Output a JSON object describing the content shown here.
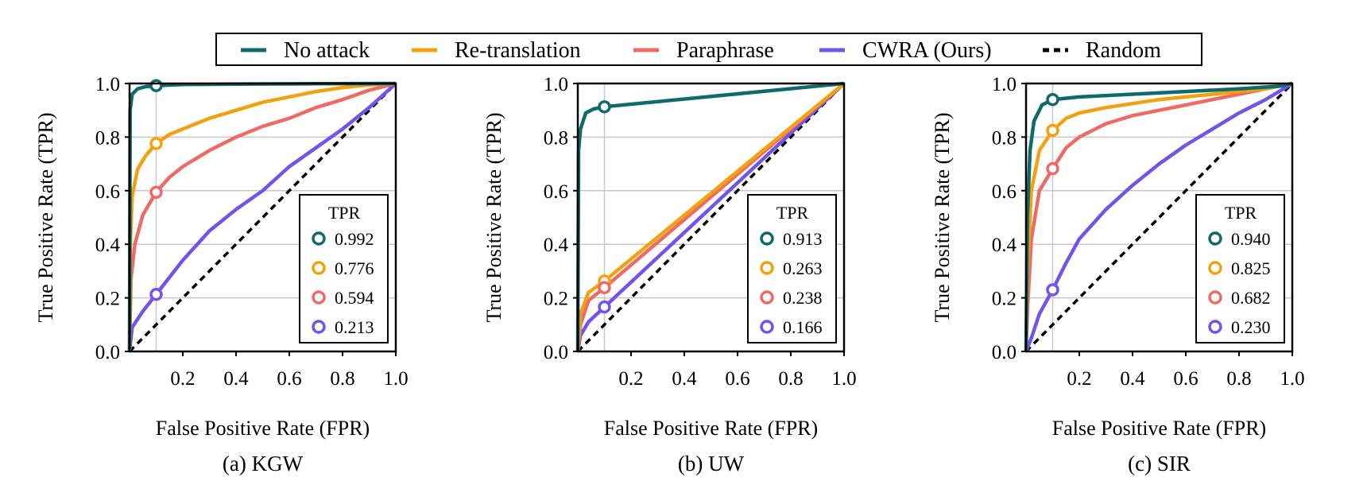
{
  "legend": {
    "entries": [
      {
        "label": "No attack",
        "color": "#0f6b6b",
        "dashed": false
      },
      {
        "label": "Re-translation",
        "color": "#f2a20f",
        "dashed": false
      },
      {
        "label": "Paraphrase",
        "color": "#ee6b65",
        "dashed": false
      },
      {
        "label": "CWRA (Ours)",
        "color": "#7354e8",
        "dashed": false
      },
      {
        "label": "Random",
        "color": "#000000",
        "dashed": true
      }
    ]
  },
  "chart_data": [
    {
      "type": "line",
      "caption": "(a) KGW",
      "xlabel": "False Positive Rate (FPR)",
      "ylabel": "True Positive Rate (TPR)",
      "xlim": [
        0,
        1
      ],
      "ylim": [
        0,
        1
      ],
      "xticks": [
        "0.2",
        "0.4",
        "0.6",
        "0.8",
        "1.0"
      ],
      "yticks": [
        "0.0",
        "0.2",
        "0.4",
        "0.6",
        "0.8",
        "1.0"
      ],
      "grid": "x=0.1 and y ticks",
      "marker_fpr": 0.1,
      "inset_title": "TPR",
      "series": [
        {
          "name": "No attack",
          "color": "#0f6b6b",
          "tpr_at_marker": "0.992",
          "points": [
            [
              0,
              0
            ],
            [
              0.002,
              0.9
            ],
            [
              0.01,
              0.96
            ],
            [
              0.03,
              0.98
            ],
            [
              0.06,
              0.988
            ],
            [
              0.1,
              0.992
            ],
            [
              0.2,
              0.996
            ],
            [
              0.4,
              0.998
            ],
            [
              0.7,
              0.999
            ],
            [
              1,
              1
            ]
          ]
        },
        {
          "name": "Re-translation",
          "color": "#f2a20f",
          "tpr_at_marker": "0.776",
          "points": [
            [
              0,
              0
            ],
            [
              0.003,
              0.4
            ],
            [
              0.01,
              0.58
            ],
            [
              0.03,
              0.68
            ],
            [
              0.06,
              0.73
            ],
            [
              0.1,
              0.776
            ],
            [
              0.15,
              0.81
            ],
            [
              0.2,
              0.83
            ],
            [
              0.3,
              0.87
            ],
            [
              0.4,
              0.9
            ],
            [
              0.5,
              0.93
            ],
            [
              0.6,
              0.95
            ],
            [
              0.7,
              0.97
            ],
            [
              0.8,
              0.985
            ],
            [
              0.9,
              0.995
            ],
            [
              1,
              1
            ]
          ]
        },
        {
          "name": "Paraphrase",
          "color": "#ee6b65",
          "tpr_at_marker": "0.594",
          "points": [
            [
              0,
              0
            ],
            [
              0.005,
              0.27
            ],
            [
              0.02,
              0.4
            ],
            [
              0.05,
              0.51
            ],
            [
              0.1,
              0.594
            ],
            [
              0.15,
              0.65
            ],
            [
              0.2,
              0.69
            ],
            [
              0.3,
              0.75
            ],
            [
              0.4,
              0.8
            ],
            [
              0.5,
              0.84
            ],
            [
              0.6,
              0.87
            ],
            [
              0.7,
              0.91
            ],
            [
              0.8,
              0.94
            ],
            [
              0.9,
              0.975
            ],
            [
              1,
              1
            ]
          ]
        },
        {
          "name": "CWRA (Ours)",
          "color": "#7354e8",
          "tpr_at_marker": "0.213",
          "points": [
            [
              0,
              0
            ],
            [
              0.01,
              0.09
            ],
            [
              0.05,
              0.15
            ],
            [
              0.1,
              0.213
            ],
            [
              0.2,
              0.34
            ],
            [
              0.3,
              0.45
            ],
            [
              0.4,
              0.53
            ],
            [
              0.5,
              0.6
            ],
            [
              0.6,
              0.69
            ],
            [
              0.7,
              0.76
            ],
            [
              0.8,
              0.83
            ],
            [
              0.9,
              0.91
            ],
            [
              1,
              1
            ]
          ]
        }
      ]
    },
    {
      "type": "line",
      "caption": "(b) UW",
      "xlabel": "False Positive Rate (FPR)",
      "ylabel": "True Positive Rate (TPR)",
      "xlim": [
        0,
        1
      ],
      "ylim": [
        0,
        1
      ],
      "xticks": [
        "0.2",
        "0.4",
        "0.6",
        "0.8",
        "1.0"
      ],
      "yticks": [
        "0.0",
        "0.2",
        "0.4",
        "0.6",
        "0.8",
        "1.0"
      ],
      "grid": "x=0.1 and y ticks",
      "marker_fpr": 0.1,
      "inset_title": "TPR",
      "series": [
        {
          "name": "No attack",
          "color": "#0f6b6b",
          "tpr_at_marker": "0.913",
          "points": [
            [
              0,
              0
            ],
            [
              0.003,
              0.75
            ],
            [
              0.01,
              0.83
            ],
            [
              0.03,
              0.89
            ],
            [
              0.06,
              0.905
            ],
            [
              0.1,
              0.913
            ],
            [
              1,
              1
            ]
          ]
        },
        {
          "name": "Re-translation",
          "color": "#f2a20f",
          "tpr_at_marker": "0.263",
          "points": [
            [
              0,
              0
            ],
            [
              0.01,
              0.14
            ],
            [
              0.04,
              0.22
            ],
            [
              0.1,
              0.263
            ],
            [
              1,
              1
            ]
          ]
        },
        {
          "name": "Paraphrase",
          "color": "#ee6b65",
          "tpr_at_marker": "0.238",
          "points": [
            [
              0,
              0
            ],
            [
              0.01,
              0.1
            ],
            [
              0.04,
              0.19
            ],
            [
              0.1,
              0.238
            ],
            [
              1,
              1
            ]
          ]
        },
        {
          "name": "CWRA (Ours)",
          "color": "#7354e8",
          "tpr_at_marker": "0.166",
          "points": [
            [
              0,
              0
            ],
            [
              0.01,
              0.06
            ],
            [
              0.04,
              0.11
            ],
            [
              0.1,
              0.166
            ],
            [
              1,
              1
            ]
          ]
        }
      ]
    },
    {
      "type": "line",
      "caption": "(c) SIR",
      "xlabel": "False Positive Rate (FPR)",
      "ylabel": "True Positive Rate (TPR)",
      "xlim": [
        0,
        1
      ],
      "ylim": [
        0,
        1
      ],
      "xticks": [
        "0.2",
        "0.4",
        "0.6",
        "0.8",
        "1.0"
      ],
      "yticks": [
        "0.0",
        "0.2",
        "0.4",
        "0.6",
        "0.8",
        "1.0"
      ],
      "grid": "x=0.1 and y ticks",
      "marker_fpr": 0.1,
      "inset_title": "TPR",
      "series": [
        {
          "name": "No attack",
          "color": "#0f6b6b",
          "tpr_at_marker": "0.940",
          "points": [
            [
              0,
              0
            ],
            [
              0.005,
              0.5
            ],
            [
              0.015,
              0.75
            ],
            [
              0.03,
              0.86
            ],
            [
              0.06,
              0.92
            ],
            [
              0.1,
              0.94
            ],
            [
              0.2,
              0.95
            ],
            [
              0.4,
              0.96
            ],
            [
              0.6,
              0.97
            ],
            [
              0.8,
              0.98
            ],
            [
              0.95,
              0.99
            ],
            [
              1,
              1
            ]
          ]
        },
        {
          "name": "Re-translation",
          "color": "#f2a20f",
          "tpr_at_marker": "0.825",
          "points": [
            [
              0,
              0
            ],
            [
              0.005,
              0.3
            ],
            [
              0.02,
              0.6
            ],
            [
              0.05,
              0.75
            ],
            [
              0.1,
              0.825
            ],
            [
              0.15,
              0.87
            ],
            [
              0.2,
              0.89
            ],
            [
              0.3,
              0.91
            ],
            [
              0.5,
              0.94
            ],
            [
              0.7,
              0.96
            ],
            [
              0.9,
              0.98
            ],
            [
              1,
              1
            ]
          ]
        },
        {
          "name": "Paraphrase",
          "color": "#ee6b65",
          "tpr_at_marker": "0.682",
          "points": [
            [
              0,
              0
            ],
            [
              0.005,
              0.15
            ],
            [
              0.02,
              0.42
            ],
            [
              0.05,
              0.6
            ],
            [
              0.1,
              0.682
            ],
            [
              0.15,
              0.76
            ],
            [
              0.2,
              0.8
            ],
            [
              0.3,
              0.85
            ],
            [
              0.4,
              0.88
            ],
            [
              0.5,
              0.9
            ],
            [
              0.6,
              0.92
            ],
            [
              0.7,
              0.94
            ],
            [
              0.8,
              0.96
            ],
            [
              0.9,
              0.98
            ],
            [
              1,
              1
            ]
          ]
        },
        {
          "name": "CWRA (Ours)",
          "color": "#7354e8",
          "tpr_at_marker": "0.230",
          "points": [
            [
              0,
              0
            ],
            [
              0.02,
              0.05
            ],
            [
              0.05,
              0.14
            ],
            [
              0.1,
              0.23
            ],
            [
              0.15,
              0.33
            ],
            [
              0.2,
              0.42
            ],
            [
              0.3,
              0.53
            ],
            [
              0.4,
              0.62
            ],
            [
              0.5,
              0.7
            ],
            [
              0.6,
              0.77
            ],
            [
              0.7,
              0.83
            ],
            [
              0.8,
              0.89
            ],
            [
              0.9,
              0.94
            ],
            [
              1,
              1
            ]
          ]
        }
      ]
    }
  ]
}
